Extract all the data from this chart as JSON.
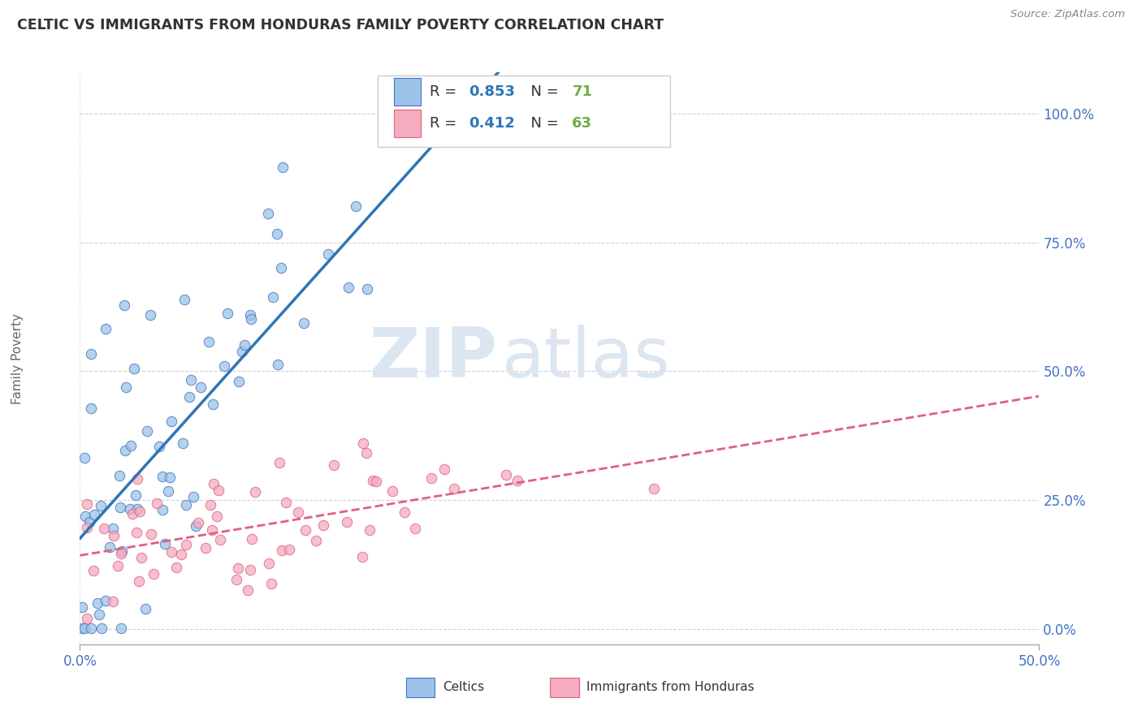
{
  "title": "CELTIC VS IMMIGRANTS FROM HONDURAS FAMILY POVERTY CORRELATION CHART",
  "source": "Source: ZipAtlas.com",
  "ylabel": "Family Poverty",
  "xlim": [
    0.0,
    0.5
  ],
  "ylim": [
    -0.03,
    1.08
  ],
  "xtick_positions": [
    0.0,
    0.5
  ],
  "xtick_labels": [
    "0.0%",
    "50.0%"
  ],
  "ytick_positions": [
    0.0,
    0.25,
    0.5,
    0.75,
    1.0
  ],
  "ytick_labels": [
    "0.0%",
    "25.0%",
    "50.0%",
    "75.0%",
    "100.0%"
  ],
  "r_celtic": 0.853,
  "n_celtic": 71,
  "r_honduras": 0.412,
  "n_honduras": 63,
  "color_celtic_fill": "#9dc3e8",
  "color_celtic_edge": "#4472c4",
  "color_honduras_fill": "#f4acbe",
  "color_honduras_edge": "#e06080",
  "color_line_celtic": "#2e75b6",
  "color_line_honduras": "#e06080",
  "color_grid": "#cccccc",
  "color_axis_text": "#4472c4",
  "color_title": "#333333",
  "watermark_zip": "ZIP",
  "watermark_atlas": "atlas",
  "watermark_color": "#dce6f0",
  "legend_r_color": "#2e75b6",
  "legend_n_color": "#70ad47",
  "bg_color": "#ffffff"
}
